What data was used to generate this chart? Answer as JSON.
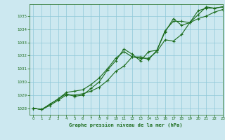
{
  "title": "Graphe pression niveau de la mer (hPa)",
  "background_color": "#cce8f0",
  "grid_color": "#8fc8d8",
  "line_color": "#1a6b1a",
  "marker_color": "#1a6b1a",
  "xlim": [
    -0.5,
    23
  ],
  "ylim": [
    1027.5,
    1035.9
  ],
  "xticks": [
    0,
    1,
    2,
    3,
    4,
    5,
    6,
    7,
    8,
    9,
    10,
    11,
    12,
    13,
    14,
    15,
    16,
    17,
    18,
    19,
    20,
    21,
    22,
    23
  ],
  "yticks": [
    1028,
    1029,
    1030,
    1031,
    1032,
    1033,
    1034,
    1035
  ],
  "series1_x": [
    0,
    1,
    2,
    3,
    4,
    5,
    6,
    7,
    8,
    9,
    10,
    11,
    12,
    13,
    14,
    15,
    16,
    17,
    18,
    19,
    20,
    21,
    22,
    23
  ],
  "series1_y": [
    1028.0,
    1027.9,
    1028.2,
    1028.6,
    1029.0,
    1029.0,
    1029.1,
    1029.3,
    1029.6,
    1030.1,
    1030.8,
    1031.2,
    1031.9,
    1031.8,
    1031.8,
    1032.3,
    1033.2,
    1033.1,
    1033.6,
    1034.5,
    1034.8,
    1035.0,
    1035.3,
    1035.5
  ],
  "series2_x": [
    0,
    1,
    2,
    3,
    4,
    5,
    6,
    7,
    8,
    9,
    10,
    11,
    12,
    13,
    14,
    15,
    16,
    17,
    18,
    19,
    20,
    21,
    22,
    23
  ],
  "series2_y": [
    1028.0,
    1027.9,
    1028.3,
    1028.7,
    1029.2,
    1029.3,
    1029.4,
    1029.8,
    1030.3,
    1031.0,
    1031.8,
    1032.3,
    1031.9,
    1031.9,
    1031.7,
    1032.4,
    1033.9,
    1034.6,
    1034.6,
    1034.5,
    1035.1,
    1035.7,
    1035.6,
    1035.7
  ],
  "series3_x": [
    0,
    1,
    2,
    3,
    4,
    5,
    6,
    7,
    8,
    9,
    10,
    11,
    12,
    13,
    14,
    15,
    16,
    17,
    18,
    19,
    20,
    21,
    22,
    23
  ],
  "series3_y": [
    1028.0,
    1027.9,
    1028.3,
    1028.7,
    1029.1,
    1028.9,
    1029.0,
    1029.5,
    1030.0,
    1030.9,
    1031.6,
    1032.5,
    1032.1,
    1031.6,
    1032.3,
    1032.4,
    1033.8,
    1034.8,
    1034.3,
    1034.5,
    1035.4,
    1035.6,
    1035.6,
    1035.7
  ]
}
